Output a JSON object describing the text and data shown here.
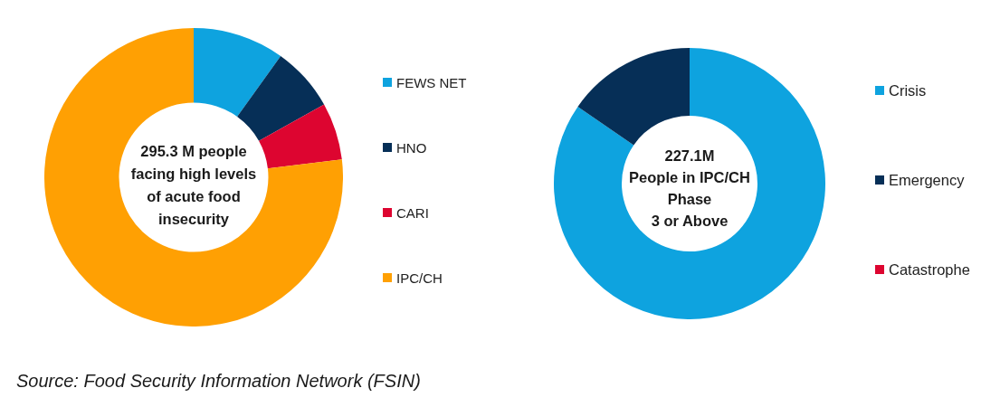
{
  "chart_data": [
    {
      "type": "donut",
      "title": "295.3 M people\nfacing high levels\nof acute food\ninsecurity",
      "categories": [
        "FEWS NET",
        "HNO",
        "CARI",
        "IPC/CH"
      ],
      "values": [
        9.9,
        7.0,
        6.2,
        76.9
      ],
      "colors": [
        "#0ea3df",
        "#062f57",
        "#dd0530",
        "#ffa003"
      ],
      "legend": "right",
      "annotations": [
        "Source: Food Security Information Network (FSIN)"
      ]
    },
    {
      "type": "donut",
      "title": "227.1M\nPeople in IPC/CH\nPhase\n3 or Above",
      "categories": [
        "Crisis",
        "Emergency",
        "Catastrophe"
      ],
      "values": [
        84.6,
        15.4,
        null
      ],
      "colors": [
        "#0ea3df",
        "#062f57",
        "#dd0530"
      ],
      "legend": "right"
    }
  ]
}
